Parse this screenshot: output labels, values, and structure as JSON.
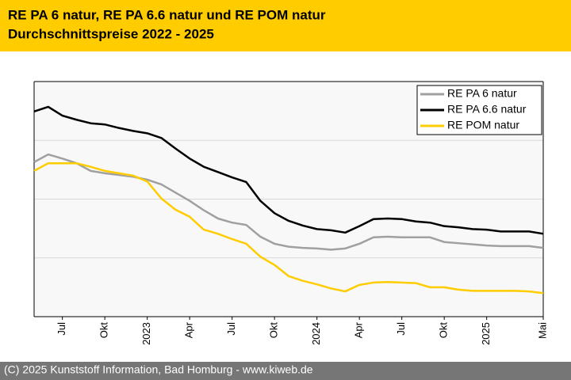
{
  "chart_data": {
    "type": "line",
    "title": "RE PA 6 natur, RE PA 6.6 natur und RE POM natur",
    "subtitle": "Durchschnittspreise 2022 - 2025",
    "footer": "(C) 2025 Kunststoff Information, Bad Homburg - www.kiweb.de",
    "categories": [
      null,
      null,
      "Jul",
      null,
      null,
      "Okt",
      null,
      null,
      "2023",
      null,
      null,
      "Apr",
      null,
      null,
      "Jul",
      null,
      null,
      "Okt",
      null,
      null,
      "2024",
      null,
      null,
      "Apr",
      null,
      null,
      "Jul",
      null,
      null,
      "Okt",
      null,
      null,
      "2025",
      null,
      null,
      null,
      "Mai"
    ],
    "series": [
      {
        "name": "RE PA 6 natur",
        "color": "#a0a0a0",
        "values": [
          2.63,
          2.76,
          2.69,
          2.61,
          2.48,
          2.44,
          2.41,
          2.38,
          2.33,
          2.25,
          2.11,
          1.97,
          1.81,
          1.67,
          1.6,
          1.56,
          1.36,
          1.24,
          1.19,
          1.17,
          1.16,
          1.14,
          1.16,
          1.24,
          1.35,
          1.36,
          1.35,
          1.35,
          1.35,
          1.27,
          1.25,
          1.23,
          1.21,
          1.2,
          1.2,
          1.2,
          1.17
        ]
      },
      {
        "name": "RE PA 6.6 natur",
        "color": "#000000",
        "values": [
          3.49,
          3.57,
          3.42,
          3.35,
          3.29,
          3.27,
          3.21,
          3.16,
          3.12,
          3.04,
          2.86,
          2.69,
          2.55,
          2.46,
          2.37,
          2.29,
          1.97,
          1.76,
          1.63,
          1.55,
          1.49,
          1.47,
          1.43,
          1.54,
          1.66,
          1.67,
          1.66,
          1.62,
          1.6,
          1.54,
          1.52,
          1.49,
          1.48,
          1.45,
          1.45,
          1.45,
          1.41
        ]
      },
      {
        "name": "RE POM natur",
        "color": "#ffcc00",
        "values": [
          2.48,
          2.61,
          2.61,
          2.61,
          2.55,
          2.48,
          2.44,
          2.4,
          2.3,
          2.01,
          1.82,
          1.7,
          1.48,
          1.41,
          1.32,
          1.24,
          1.02,
          0.88,
          0.69,
          0.61,
          0.55,
          0.48,
          0.43,
          0.54,
          0.58,
          0.59,
          0.58,
          0.57,
          0.5,
          0.5,
          0.46,
          0.44,
          0.44,
          0.44,
          0.44,
          0.43,
          0.4
        ]
      }
    ],
    "ylim": [
      0,
      4
    ],
    "yticks": [
      1,
      2,
      3
    ],
    "ytick_labels": false,
    "grid": true,
    "legend": "upper right"
  }
}
